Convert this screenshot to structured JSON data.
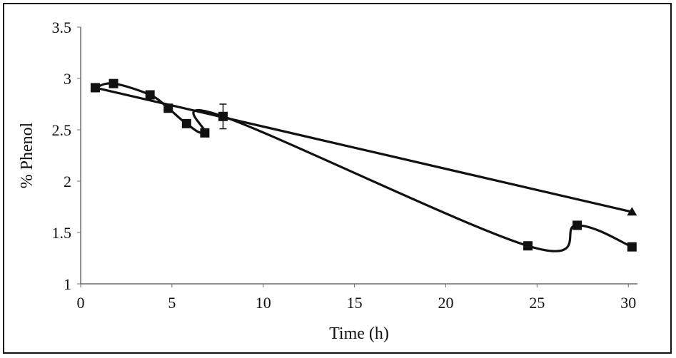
{
  "chart_data": {
    "type": "line",
    "title": "",
    "xlabel": "Time (h)",
    "ylabel": "% Phenol",
    "xlim": [
      0,
      30.5
    ],
    "ylim": [
      1,
      3.5
    ],
    "x_ticks": [
      "0",
      "5",
      "10",
      "15",
      "20",
      "25",
      "30"
    ],
    "y_ticks": [
      "1",
      "1.5",
      "2",
      "2.5",
      "3",
      "3.5"
    ],
    "grid": false,
    "legend": "none",
    "series": [
      {
        "marker": "square",
        "smooth": true,
        "color": "#111111",
        "x": [
          0.8,
          1.8,
          3.8,
          4.8,
          5.8,
          6.8,
          7.8,
          24.5,
          27.2,
          30.2
        ],
        "y": [
          2.91,
          2.95,
          2.84,
          2.71,
          2.56,
          2.47,
          2.63,
          1.37,
          1.57,
          1.36
        ]
      },
      {
        "marker": "triangle",
        "smooth": false,
        "color": "#111111",
        "x": [
          0.8,
          30.2
        ],
        "y": [
          2.91,
          1.7
        ]
      }
    ],
    "error_bars": [
      {
        "series": 0,
        "x": 7.8,
        "y": 2.63,
        "plus": 0.12,
        "minus": 0.12
      }
    ]
  }
}
